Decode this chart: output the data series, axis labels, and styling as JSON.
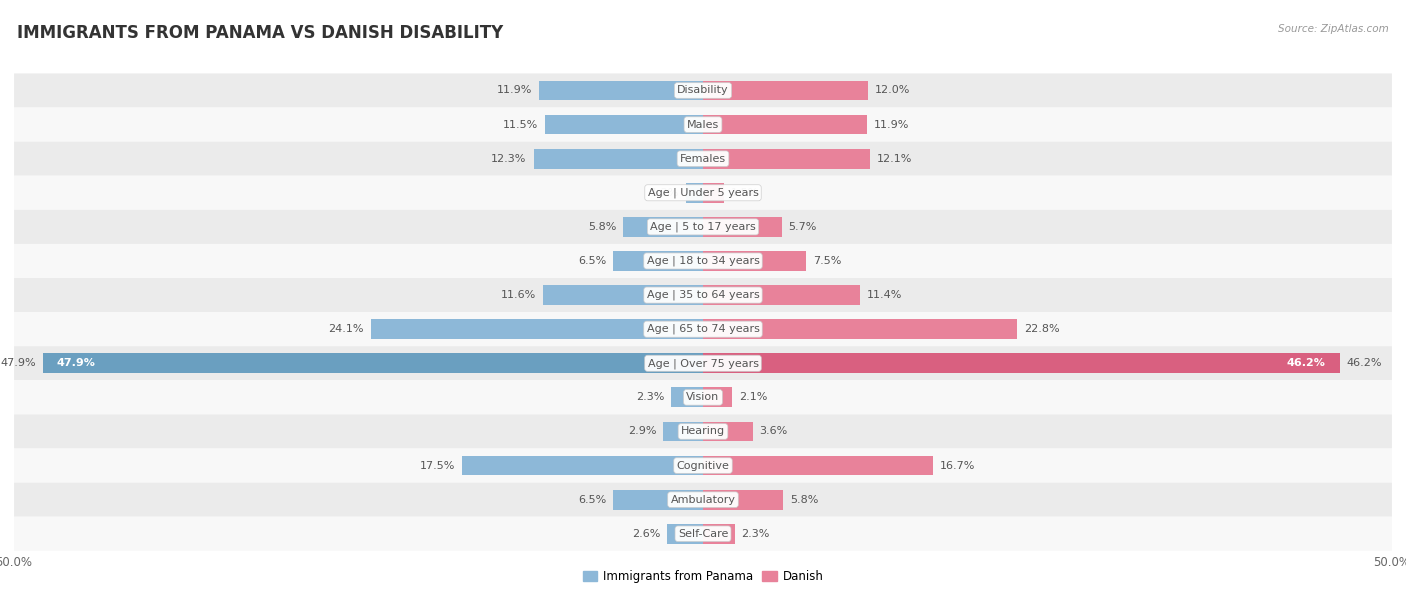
{
  "title": "IMMIGRANTS FROM PANAMA VS DANISH DISABILITY",
  "source": "Source: ZipAtlas.com",
  "categories": [
    "Disability",
    "Males",
    "Females",
    "Age | Under 5 years",
    "Age | 5 to 17 years",
    "Age | 18 to 34 years",
    "Age | 35 to 64 years",
    "Age | 65 to 74 years",
    "Age | Over 75 years",
    "Vision",
    "Hearing",
    "Cognitive",
    "Ambulatory",
    "Self-Care"
  ],
  "panama_values": [
    11.9,
    11.5,
    12.3,
    1.2,
    5.8,
    6.5,
    11.6,
    24.1,
    47.9,
    2.3,
    2.9,
    17.5,
    6.5,
    2.6
  ],
  "danish_values": [
    12.0,
    11.9,
    12.1,
    1.5,
    5.7,
    7.5,
    11.4,
    22.8,
    46.2,
    2.1,
    3.6,
    16.7,
    5.8,
    2.3
  ],
  "max_value": 50.0,
  "panama_color": "#8db8d8",
  "danish_color": "#e8829a",
  "bar_height": 0.58,
  "row_bg_light": "#ebebeb",
  "row_bg_white": "#f8f8f8",
  "title_fontsize": 12,
  "label_fontsize": 8,
  "value_fontsize": 8,
  "legend_label_panama": "Immigrants from Panama",
  "legend_label_danish": "Danish",
  "background_color": "#ffffff",
  "label_text_color": "#555555",
  "value_text_color": "#555555",
  "over75_panama_color": "#6a9fc0",
  "over75_danish_color": "#d96080"
}
